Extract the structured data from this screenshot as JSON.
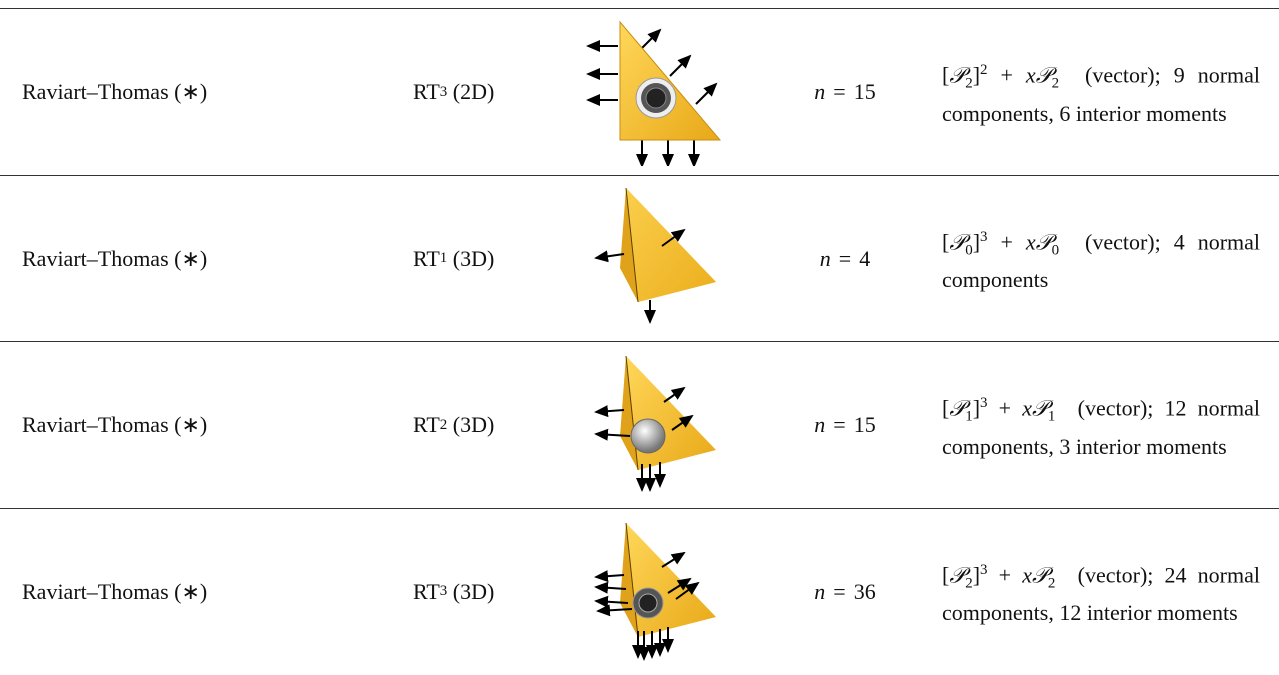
{
  "rows": [
    {
      "element": "Raviart–Thomas (∗)",
      "notation": {
        "base": "RT",
        "sub": "3",
        "dim": "(2D)"
      },
      "dofs": {
        "var": "n",
        "rel": "=",
        "value": 15
      },
      "space": {
        "open": "[",
        "poly": "𝒫",
        "sub": "2",
        "close": "]",
        "power": "2",
        "plus": "+",
        "x": "x",
        "poly2": "𝒫",
        "sub2": "2"
      },
      "description": "(vector);  9 normal components, 6 interior moments"
    },
    {
      "element": "Raviart–Thomas (∗)",
      "notation": {
        "base": "RT",
        "sub": "1",
        "dim": "(3D)"
      },
      "dofs": {
        "var": "n",
        "rel": "=",
        "value": 4
      },
      "space": {
        "open": "[",
        "poly": "𝒫",
        "sub": "0",
        "close": "]",
        "power": "3",
        "plus": "+",
        "x": "x",
        "poly2": "𝒫",
        "sub2": "0"
      },
      "description": "(vector);  4 normal components"
    },
    {
      "element": "Raviart–Thomas (∗)",
      "notation": {
        "base": "RT",
        "sub": "2",
        "dim": "(3D)"
      },
      "dofs": {
        "var": "n",
        "rel": "=",
        "value": 15
      },
      "space": {
        "open": "[",
        "poly": "𝒫",
        "sub": "1",
        "close": "]",
        "power": "3",
        "plus": "+",
        "x": "x",
        "poly2": "𝒫",
        "sub2": "1"
      },
      "description": "(vector);  12 normal components, 3 interior moments"
    },
    {
      "element": "Raviart–Thomas (∗)",
      "notation": {
        "base": "RT",
        "sub": "3",
        "dim": "(3D)"
      },
      "dofs": {
        "var": "n",
        "rel": "=",
        "value": 36
      },
      "space": {
        "open": "[",
        "poly": "𝒫",
        "sub": "2",
        "close": "]",
        "power": "3",
        "plus": "+",
        "x": "x",
        "poly2": "𝒫",
        "sub2": "2"
      },
      "description": "(vector);  24 normal components, 12 interior moments"
    }
  ]
}
